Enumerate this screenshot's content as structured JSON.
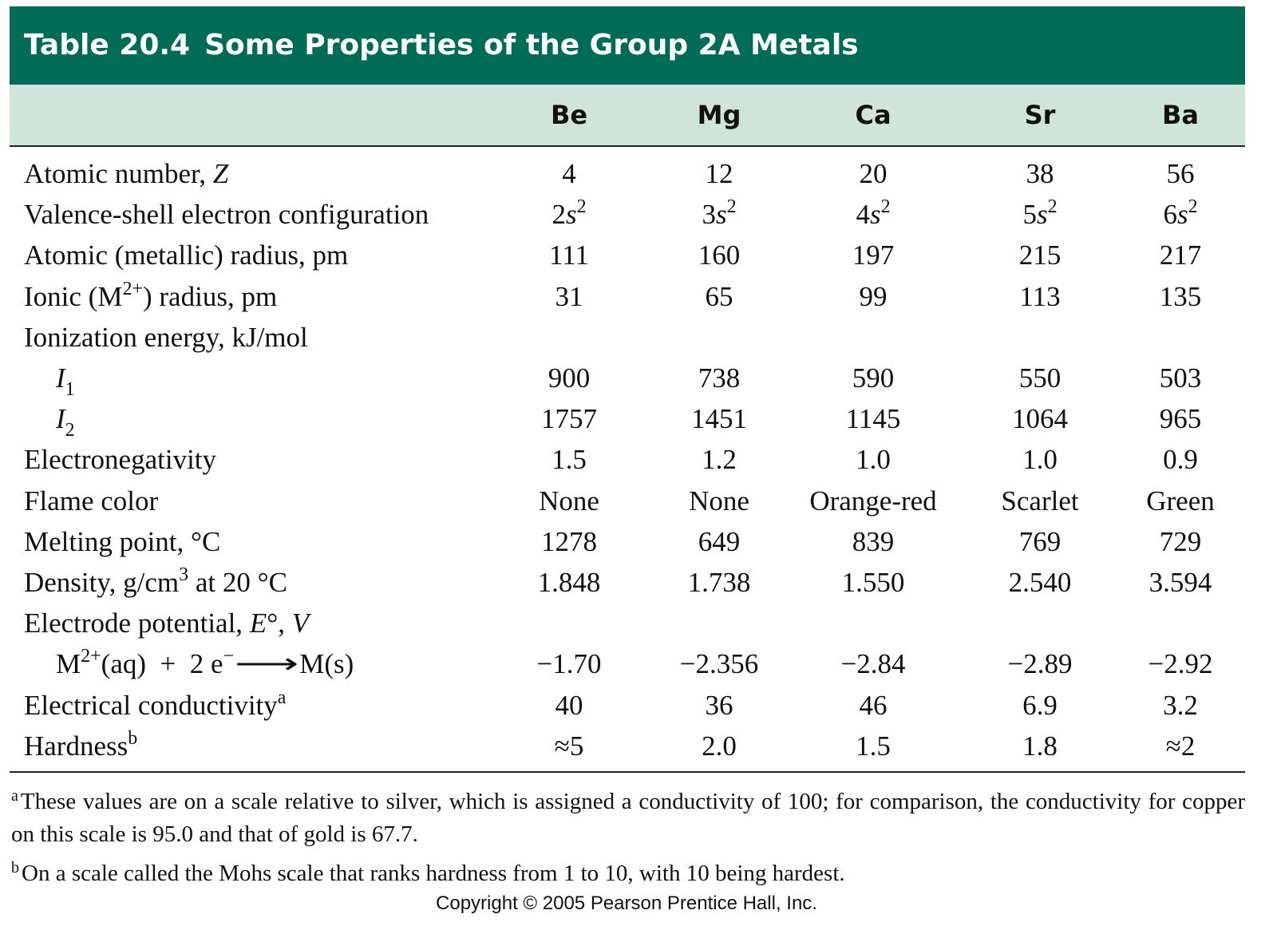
{
  "header": {
    "number": "Table 20.4",
    "title": "Some Properties of the Group 2A Metals"
  },
  "table": {
    "columns": [
      "Be",
      "Mg",
      "Ca",
      "Sr",
      "Ba"
    ],
    "rows": [
      {
        "label": [
          "Atomic number, ",
          "Z"
        ],
        "values": [
          "4",
          "12",
          "20",
          "38",
          "56"
        ]
      },
      {
        "label": [
          "Valence-shell electron configuration"
        ],
        "values": [
          [
            "2",
            "s",
            "2"
          ],
          [
            "3",
            "s",
            "2"
          ],
          [
            "4",
            "s",
            "2"
          ],
          [
            "5",
            "s",
            "2"
          ],
          [
            "6",
            "s",
            "2"
          ]
        ]
      },
      {
        "label": [
          "Atomic (metallic) radius, pm"
        ],
        "values": [
          "111",
          "160",
          "197",
          "215",
          "217"
        ]
      },
      {
        "label": [
          "Ionic (M",
          "2+",
          ") radius, pm"
        ],
        "values": [
          "31",
          "65",
          "99",
          "113",
          "135"
        ]
      },
      {
        "label": [
          "Ionization energy, kJ/mol"
        ]
      },
      {
        "label": [
          "I",
          "1"
        ],
        "values": [
          "900",
          "738",
          "590",
          "550",
          "503"
        ]
      },
      {
        "label": [
          "I",
          "2"
        ],
        "values": [
          "1757",
          "1451",
          "1145",
          "1064",
          "965"
        ]
      },
      {
        "label": [
          "Electronegativity"
        ],
        "values": [
          "1.5",
          "1.2",
          "1.0",
          "1.0",
          "0.9"
        ]
      },
      {
        "label": [
          "Flame color"
        ],
        "values": [
          "None",
          "None",
          "Orange-red",
          "Scarlet",
          "Green"
        ]
      },
      {
        "label": [
          "Melting point, °C"
        ],
        "values": [
          "1278",
          "649",
          "839",
          "769",
          "729"
        ]
      },
      {
        "label": [
          "Density, g/cm",
          "3",
          " at 20 °C"
        ],
        "values": [
          "1.848",
          "1.738",
          "1.550",
          "2.540",
          "3.594"
        ]
      },
      {
        "label": [
          "Electrode potential, ",
          "E",
          "°, ",
          "V"
        ]
      },
      {
        "label": [
          "M",
          "2+",
          "(aq)  +  2 e",
          "−",
          "⟶",
          "M(s)"
        ],
        "values": [
          "−1.70",
          "−2.356",
          "−2.84",
          "−2.89",
          "−2.92"
        ]
      },
      {
        "label": [
          "Electrical conductivity",
          "a"
        ],
        "values": [
          "40",
          "36",
          "46",
          "6.9",
          "3.2"
        ]
      },
      {
        "label": [
          "Hardness",
          "b"
        ],
        "values": [
          "≈5",
          "2.0",
          "1.5",
          "1.8",
          "≈2"
        ]
      }
    ]
  },
  "footnotes": [
    {
      "mark": "a",
      "text": "These values are on a scale relative to silver, which is assigned a conductivity of 100; for comparison, the conductivity for copper on this scale is 95.0 and that of gold is 67.7."
    },
    {
      "mark": "b",
      "text": "On a scale called the Mohs scale that ranks hardness from 1 to 10, with 10 being hardest."
    }
  ],
  "copyright": "Copyright © 2005 Pearson Prentice Hall, Inc."
}
